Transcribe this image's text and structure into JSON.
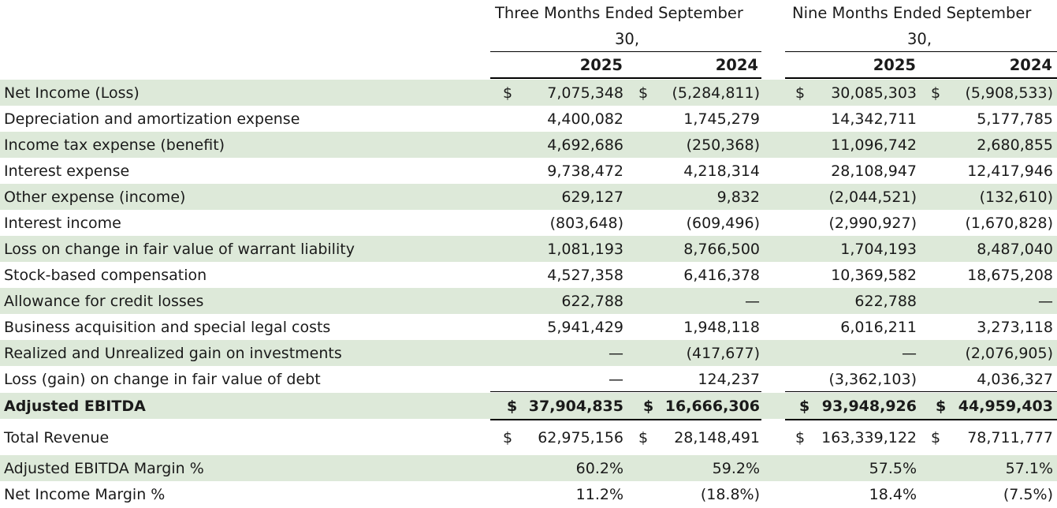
{
  "header": {
    "three_months": {
      "line1": "Three Months Ended September",
      "line2": "30,"
    },
    "nine_months": {
      "line1": "Nine Months Ended September",
      "line2": "30,"
    },
    "years": [
      "2025",
      "2024",
      "2025",
      "2024"
    ]
  },
  "currency_symbol": "$",
  "colors": {
    "band": "#dde9d9",
    "text": "#1a1a1a",
    "rule": "#000000"
  },
  "rows": [
    {
      "label": "Net Income (Loss)",
      "values": [
        "7,075,348",
        "(5,284,811)",
        "30,085,303",
        "(5,908,533)"
      ],
      "dollar": true,
      "shaded": true,
      "bold": false
    },
    {
      "label": "Depreciation and amortization expense",
      "values": [
        "4,400,082",
        "1,745,279",
        "14,342,711",
        "5,177,785"
      ],
      "dollar": false,
      "shaded": false,
      "bold": false
    },
    {
      "label": "Income tax expense (benefit)",
      "values": [
        "4,692,686",
        "(250,368)",
        "11,096,742",
        "2,680,855"
      ],
      "dollar": false,
      "shaded": true,
      "bold": false
    },
    {
      "label": "Interest expense",
      "values": [
        "9,738,472",
        "4,218,314",
        "28,108,947",
        "12,417,946"
      ],
      "dollar": false,
      "shaded": false,
      "bold": false
    },
    {
      "label": "Other expense (income)",
      "values": [
        "629,127",
        "9,832",
        "(2,044,521)",
        "(132,610)"
      ],
      "dollar": false,
      "shaded": true,
      "bold": false
    },
    {
      "label": "Interest income",
      "values": [
        "(803,648)",
        "(609,496)",
        "(2,990,927)",
        "(1,670,828)"
      ],
      "dollar": false,
      "shaded": false,
      "bold": false
    },
    {
      "label": "Loss on change in fair value of warrant liability",
      "values": [
        "1,081,193",
        "8,766,500",
        "1,704,193",
        "8,487,040"
      ],
      "dollar": false,
      "shaded": true,
      "bold": false
    },
    {
      "label": "Stock-based compensation",
      "values": [
        "4,527,358",
        "6,416,378",
        "10,369,582",
        "18,675,208"
      ],
      "dollar": false,
      "shaded": false,
      "bold": false
    },
    {
      "label": "Allowance for credit losses",
      "values": [
        "622,788",
        "—",
        "622,788",
        "—"
      ],
      "dollar": false,
      "shaded": true,
      "bold": false
    },
    {
      "label": "Business acquisition and special legal costs",
      "values": [
        "5,941,429",
        "1,948,118",
        "6,016,211",
        "3,273,118"
      ],
      "dollar": false,
      "shaded": false,
      "bold": false
    },
    {
      "label": "Realized and Unrealized gain on investments",
      "values": [
        "—",
        "(417,677)",
        "—",
        "(2,076,905)"
      ],
      "dollar": false,
      "shaded": true,
      "bold": false
    },
    {
      "label": "Loss (gain) on change in fair value of debt",
      "values": [
        "—",
        "124,237",
        "(3,362,103)",
        "4,036,327"
      ],
      "dollar": false,
      "shaded": false,
      "bold": false
    },
    {
      "label": "Adjusted EBITDA",
      "values": [
        "37,904,835",
        "16,666,306",
        "93,948,926",
        "44,959,403"
      ],
      "dollar": true,
      "shaded": true,
      "bold": true
    },
    {
      "label": "Total Revenue",
      "values": [
        "62,975,156",
        "28,148,491",
        "163,339,122",
        "78,711,777"
      ],
      "dollar": true,
      "shaded": false,
      "bold": false
    },
    {
      "label": "Adjusted EBITDA Margin %",
      "values": [
        "60.2%",
        "59.2%",
        "57.5%",
        "57.1%"
      ],
      "dollar": false,
      "shaded": true,
      "bold": false
    },
    {
      "label": "Net Income Margin %",
      "values": [
        "11.2%",
        "(18.8%)",
        "18.4%",
        "(7.5%)"
      ],
      "dollar": false,
      "shaded": false,
      "bold": false
    }
  ]
}
